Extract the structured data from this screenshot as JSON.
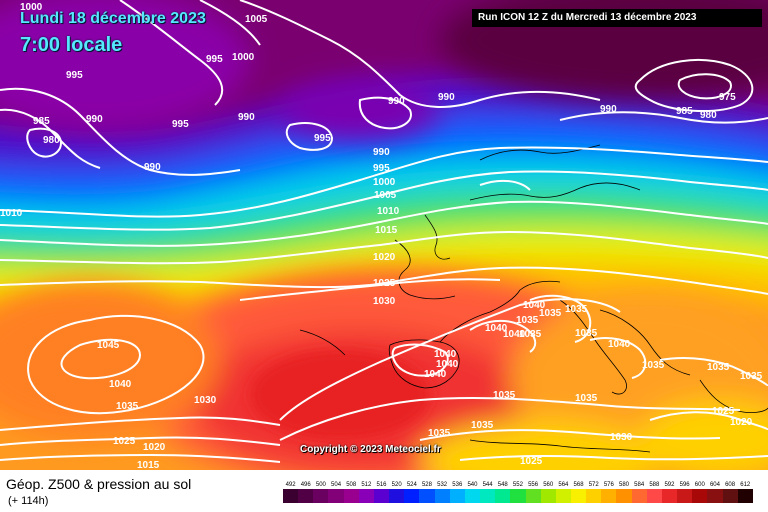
{
  "header": {
    "date": "Lundi 18 décembre 2023",
    "time": "7:00 locale",
    "run": "Run ICON 12 Z du Mercredi 13 décembre 2023"
  },
  "copyright": "Copyright © 2023 Meteociel.fr",
  "footer": {
    "title": "Géop. Z500 & pression au sol",
    "subtitle": "(+ 114h)"
  },
  "scale": {
    "labels": [
      "492",
      "496",
      "500",
      "504",
      "508",
      "512",
      "516",
      "520",
      "524",
      "528",
      "532",
      "536",
      "540",
      "544",
      "548",
      "552",
      "556",
      "560",
      "564",
      "568",
      "572",
      "576",
      "580",
      "584",
      "588",
      "592",
      "596",
      "600",
      "604",
      "608",
      "612"
    ],
    "colors": [
      "#3a0030",
      "#520046",
      "#6a0060",
      "#820078",
      "#9a0090",
      "#8a00b8",
      "#5a00d0",
      "#2010e0",
      "#0020ff",
      "#0050ff",
      "#0080ff",
      "#00b0ff",
      "#00d8f0",
      "#00e8c0",
      "#00e890",
      "#20e040",
      "#60e020",
      "#a0e800",
      "#d0f000",
      "#f8f000",
      "#ffd000",
      "#ffb000",
      "#ff9000",
      "#ff6830",
      "#ff4848",
      "#e82828",
      "#c81818",
      "#a80808",
      "#881010",
      "#601010",
      "#200000"
    ]
  },
  "isobars": [
    {
      "text": "1000"
    },
    {
      "text": "1005"
    },
    {
      "text": "995"
    },
    {
      "text": "1000"
    },
    {
      "text": "995"
    },
    {
      "text": "985"
    },
    {
      "text": "990"
    },
    {
      "text": "980"
    },
    {
      "text": "995"
    },
    {
      "text": "990"
    },
    {
      "text": "990"
    },
    {
      "text": "990"
    },
    {
      "text": "990"
    },
    {
      "text": "995"
    },
    {
      "text": "990"
    },
    {
      "text": "985"
    },
    {
      "text": "975"
    },
    {
      "text": "980"
    },
    {
      "text": "990"
    },
    {
      "text": "995"
    },
    {
      "text": "1000"
    },
    {
      "text": "1005"
    },
    {
      "text": "1010"
    },
    {
      "text": "1010"
    },
    {
      "text": "1015"
    },
    {
      "text": "1020"
    },
    {
      "text": "1025"
    },
    {
      "text": "1030"
    },
    {
      "text": "1045"
    },
    {
      "text": "1040"
    },
    {
      "text": "1035"
    },
    {
      "text": "1030"
    },
    {
      "text": "1025"
    },
    {
      "text": "1020"
    },
    {
      "text": "1015"
    },
    {
      "text": "1040"
    },
    {
      "text": "1040"
    },
    {
      "text": "1035"
    },
    {
      "text": "1035"
    },
    {
      "text": "1035"
    },
    {
      "text": "1040"
    },
    {
      "text": "1035"
    },
    {
      "text": "1035"
    },
    {
      "text": "1040"
    },
    {
      "text": "1040"
    },
    {
      "text": "1040"
    },
    {
      "text": "1035"
    },
    {
      "text": "1040"
    },
    {
      "text": "1035"
    },
    {
      "text": "1035"
    },
    {
      "text": "1035"
    },
    {
      "text": "1035"
    },
    {
      "text": "1035"
    },
    {
      "text": "1035"
    },
    {
      "text": "1030"
    },
    {
      "text": "1025"
    },
    {
      "text": "1025"
    },
    {
      "text": "1020"
    }
  ]
}
